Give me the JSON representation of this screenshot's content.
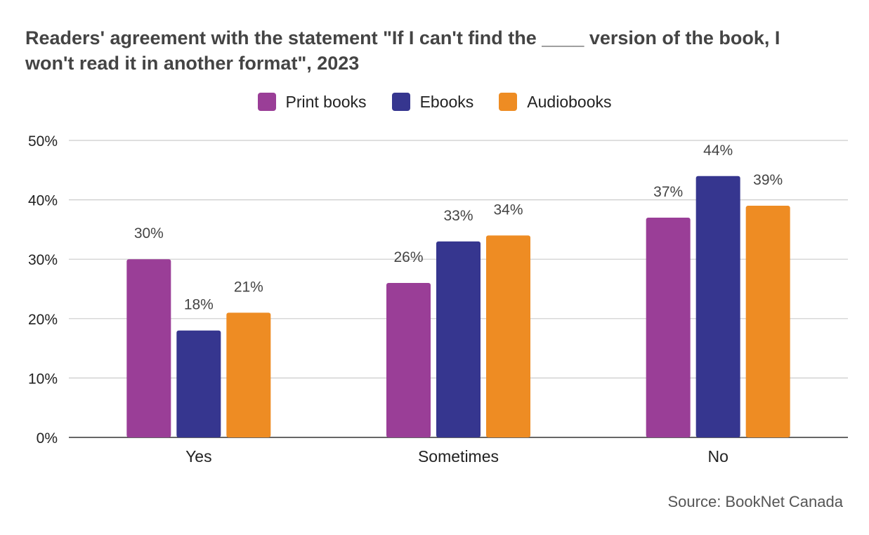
{
  "chart_data": {
    "type": "bar",
    "title": "Readers' agreement with the statement \"If I can't find the ____ version of the book, I won't read it in another format\", 2023",
    "categories": [
      "Yes",
      "Sometimes",
      "No"
    ],
    "series": [
      {
        "name": "Print books",
        "color": "#9a3e97",
        "values": [
          30,
          26,
          37
        ]
      },
      {
        "name": "Ebooks",
        "color": "#36368f",
        "values": [
          18,
          33,
          44
        ]
      },
      {
        "name": "Audiobooks",
        "color": "#ee8c23",
        "values": [
          21,
          34,
          39
        ]
      }
    ],
    "ylim": [
      0,
      50
    ],
    "yticks": [
      "0%",
      "10%",
      "20%",
      "30%",
      "40%",
      "50%"
    ],
    "value_suffix": "%",
    "grid": true,
    "legend_position": "top-center",
    "source": "Source: BookNet Canada"
  }
}
